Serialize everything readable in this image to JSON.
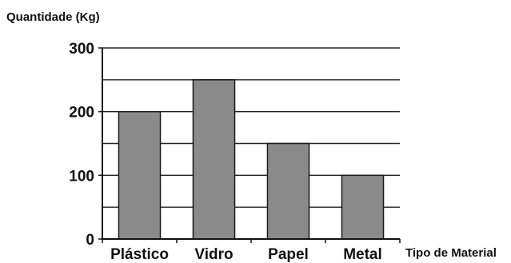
{
  "chart_data": {
    "type": "bar",
    "ylabel": "Quantidade (Kg)",
    "xlabel": "Tipo de Material",
    "categories": [
      "Plástico",
      "Vidro",
      "Papel",
      "Metal"
    ],
    "values": [
      200,
      250,
      150,
      100
    ],
    "ylim": [
      0,
      300
    ],
    "yticks": [
      0,
      100,
      200,
      300
    ],
    "grid": true,
    "bar_color": "#8a8a8a",
    "bar_edge_color": "#1a1a1a"
  }
}
